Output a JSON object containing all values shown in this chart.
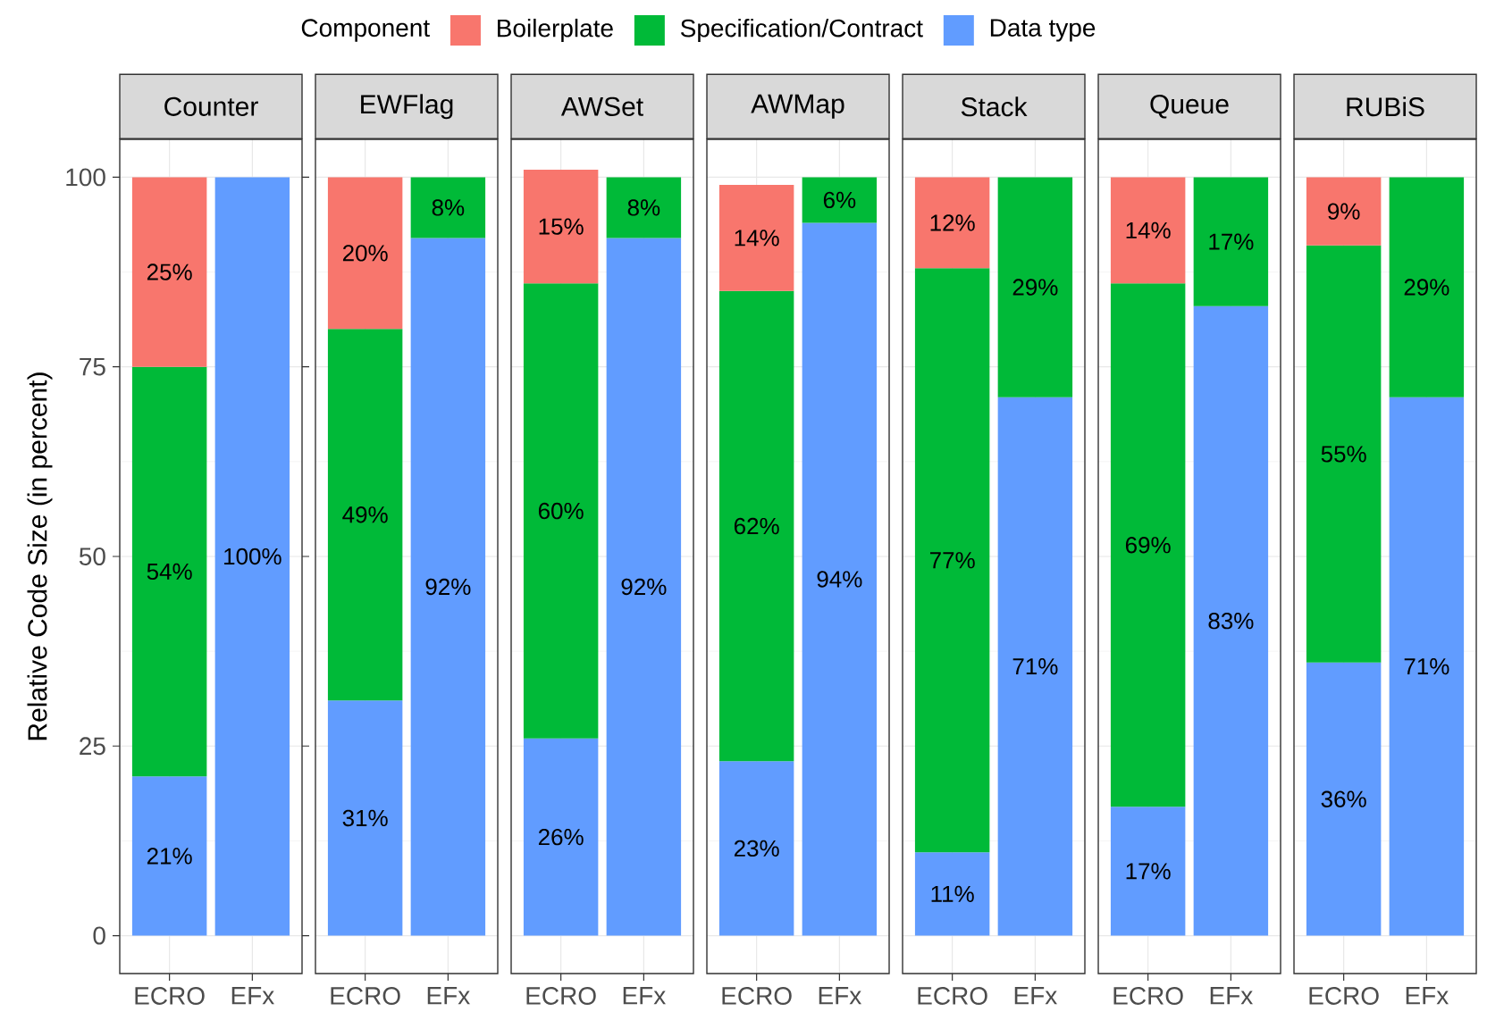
{
  "chart_data": [
    {
      "type": "bar",
      "title": "Counter",
      "categories": [
        "ECRO",
        "EFx"
      ],
      "stacked": true,
      "ylim": [
        -5,
        105
      ],
      "yticks": [
        0,
        25,
        50,
        75,
        100
      ],
      "grid": true,
      "ylabel": "Relative Code Size (in percent)",
      "legend": "top",
      "legend_title": "Component",
      "series": [
        {
          "name": "Data type",
          "color": "#619cff",
          "values": [
            21,
            100
          ],
          "value_labels": [
            "21%",
            "100%"
          ]
        },
        {
          "name": "Specification/Contract",
          "color": "#00ba38",
          "values": [
            54,
            null
          ],
          "value_labels": [
            "54%",
            null
          ]
        },
        {
          "name": "Boilerplate",
          "color": "#f8766d",
          "values": [
            25,
            null
          ],
          "value_labels": [
            "25%",
            null
          ]
        }
      ]
    },
    {
      "type": "bar",
      "title": "EWFlag",
      "categories": [
        "ECRO",
        "EFx"
      ],
      "stacked": true,
      "ylim": [
        -5,
        105
      ],
      "yticks": [
        0,
        25,
        50,
        75,
        100
      ],
      "grid": true,
      "tick_labels": "x",
      "series": [
        {
          "color": "#619cff",
          "values": [
            31,
            92
          ],
          "value_labels": [
            "31%",
            "92%"
          ]
        },
        {
          "color": "#00ba38",
          "values": [
            49,
            8
          ],
          "value_labels": [
            "49%",
            "8%"
          ]
        },
        {
          "color": "#f8766d",
          "values": [
            20,
            null
          ],
          "value_labels": [
            "20%",
            null
          ]
        }
      ]
    },
    {
      "type": "bar",
      "title": "AWSet",
      "categories": [
        "ECRO",
        "EFx"
      ],
      "stacked": true,
      "ylim": [
        -5,
        105
      ],
      "yticks": [
        0,
        25,
        50,
        75,
        100
      ],
      "grid": true,
      "tick_labels": "x",
      "series": [
        {
          "color": "#619cff",
          "values": [
            26,
            92
          ],
          "value_labels": [
            "26%",
            "92%"
          ]
        },
        {
          "color": "#00ba38",
          "values": [
            60,
            8
          ],
          "value_labels": [
            "60%",
            "8%"
          ]
        },
        {
          "color": "#f8766d",
          "values": [
            15,
            null
          ],
          "value_labels": [
            "15%",
            null
          ]
        }
      ]
    },
    {
      "type": "bar",
      "title": "AWMap",
      "categories": [
        "ECRO",
        "EFx"
      ],
      "stacked": true,
      "ylim": [
        -5,
        105
      ],
      "yticks": [
        0,
        25,
        50,
        75,
        100
      ],
      "grid": true,
      "tick_labels": "x",
      "series": [
        {
          "color": "#619cff",
          "values": [
            23,
            94
          ],
          "value_labels": [
            "23%",
            "94%"
          ]
        },
        {
          "color": "#00ba38",
          "values": [
            62,
            6
          ],
          "value_labels": [
            "62%",
            "6%"
          ]
        },
        {
          "color": "#f8766d",
          "values": [
            14,
            null
          ],
          "value_labels": [
            "14%",
            null
          ]
        }
      ]
    },
    {
      "type": "bar",
      "title": "Stack",
      "categories": [
        "ECRO",
        "EFx"
      ],
      "stacked": true,
      "ylim": [
        -5,
        105
      ],
      "yticks": [
        0,
        25,
        50,
        75,
        100
      ],
      "grid": true,
      "tick_labels": "x",
      "series": [
        {
          "color": "#619cff",
          "values": [
            11,
            71
          ],
          "value_labels": [
            "11%",
            "71%"
          ]
        },
        {
          "color": "#00ba38",
          "values": [
            77,
            29
          ],
          "value_labels": [
            "77%",
            "29%"
          ]
        },
        {
          "color": "#f8766d",
          "values": [
            12,
            null
          ],
          "value_labels": [
            "12%",
            null
          ]
        }
      ]
    },
    {
      "type": "bar",
      "title": "Queue",
      "categories": [
        "ECRO",
        "EFx"
      ],
      "stacked": true,
      "ylim": [
        -5,
        105
      ],
      "yticks": [
        0,
        25,
        50,
        75,
        100
      ],
      "grid": true,
      "tick_labels": "x",
      "series": [
        {
          "color": "#619cff",
          "values": [
            17,
            83
          ],
          "value_labels": [
            "17%",
            "83%"
          ]
        },
        {
          "color": "#00ba38",
          "values": [
            69,
            17
          ],
          "value_labels": [
            "69%",
            "17%"
          ]
        },
        {
          "color": "#f8766d",
          "values": [
            14,
            null
          ],
          "value_labels": [
            "14%",
            null
          ]
        }
      ]
    },
    {
      "type": "bar",
      "title": "RUBiS",
      "categories": [
        "ECRO",
        "EFx"
      ],
      "stacked": true,
      "ylim": [
        -5,
        105
      ],
      "yticks": [
        0,
        25,
        50,
        75,
        100
      ],
      "grid": true,
      "tick_labels": "x",
      "series": [
        {
          "color": "#619cff",
          "values": [
            36,
            71
          ],
          "value_labels": [
            "36%",
            "71%"
          ]
        },
        {
          "color": "#00ba38",
          "values": [
            55,
            29
          ],
          "value_labels": [
            "55%",
            "29%"
          ]
        },
        {
          "color": "#f8766d",
          "values": [
            9,
            null
          ],
          "value_labels": [
            "9%",
            null
          ]
        }
      ]
    }
  ]
}
